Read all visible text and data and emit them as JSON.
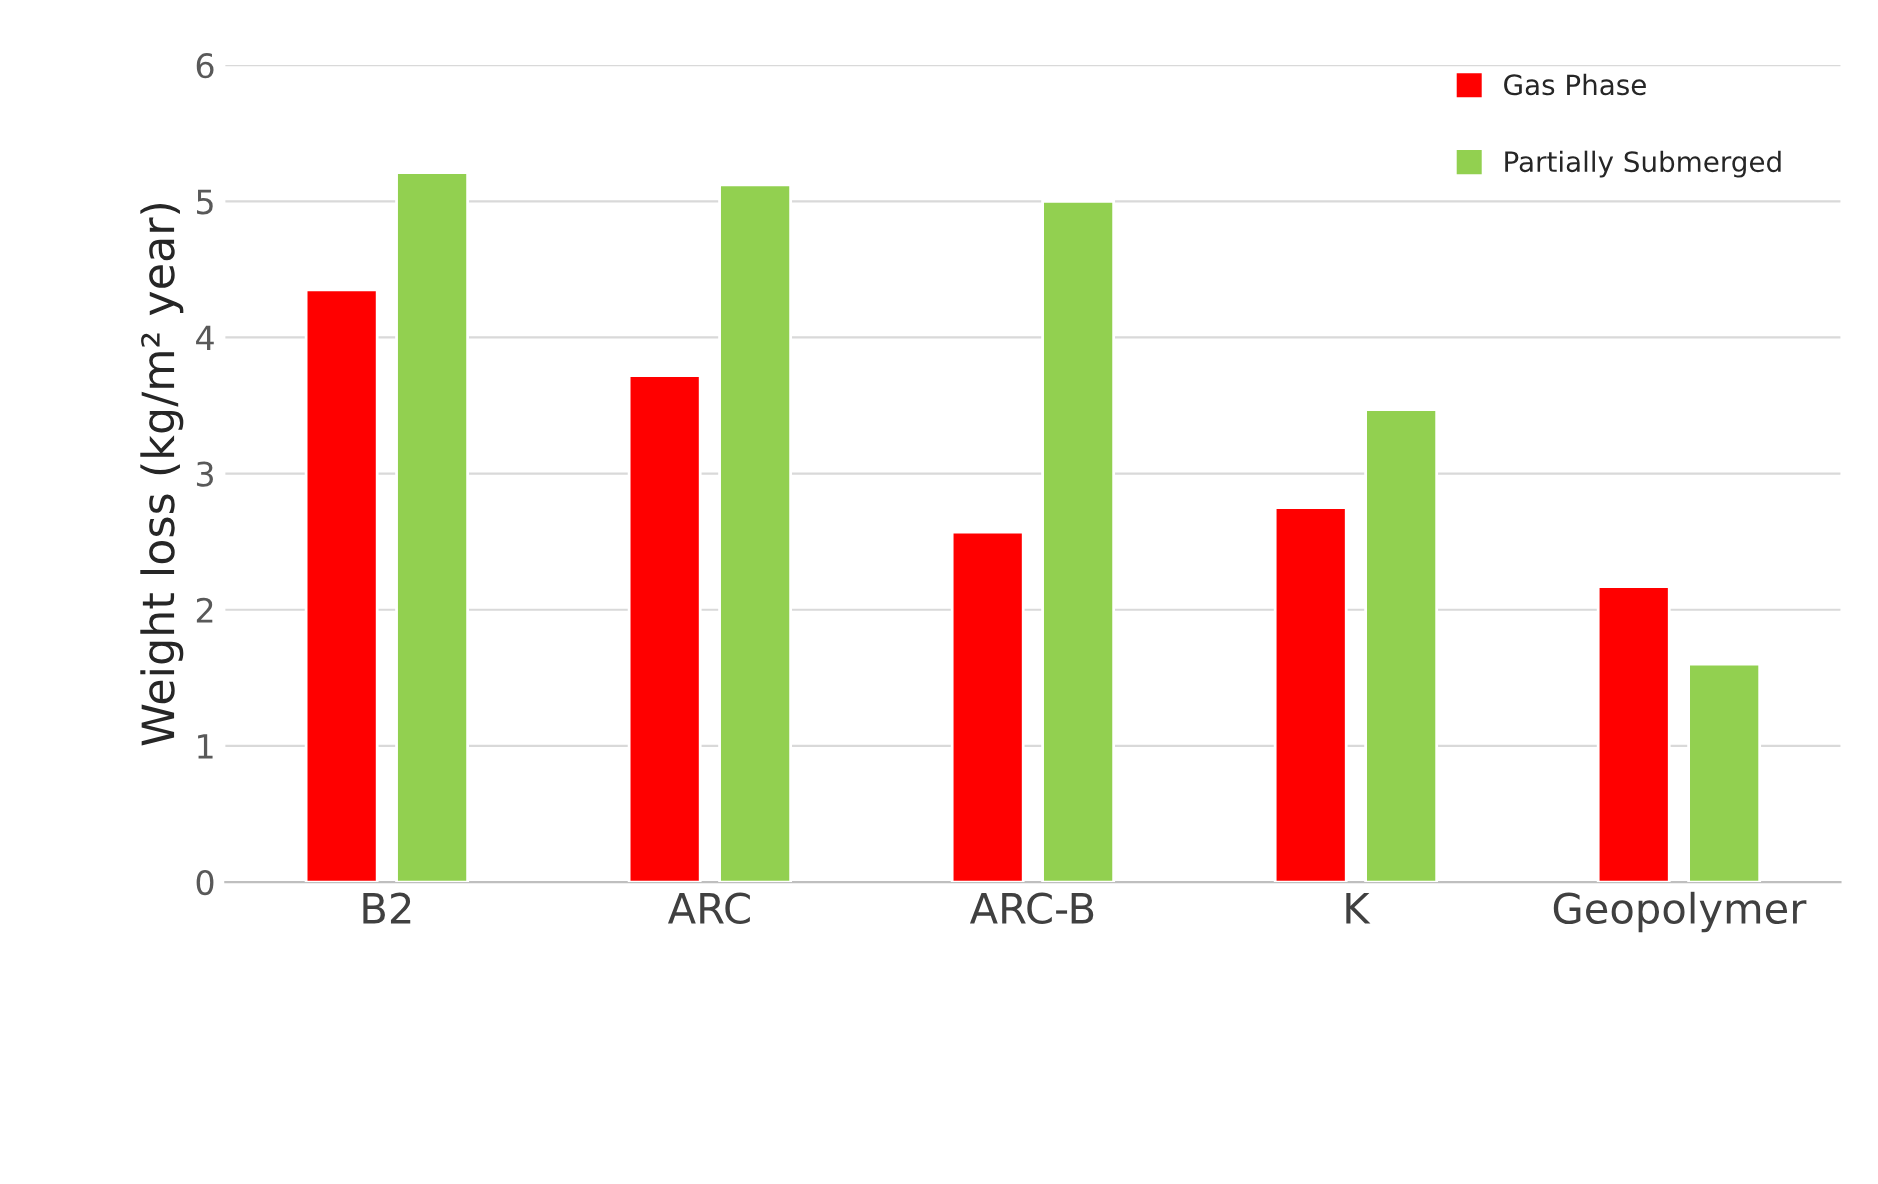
{
  "chart_data": {
    "type": "bar",
    "ylabel": "Weight loss (kg/m² year)",
    "categories": [
      "B2",
      "ARC",
      "ARC-B",
      "K",
      "Geopolymer"
    ],
    "series": [
      {
        "name": "Gas Phase",
        "color": "#ff0000",
        "values": [
          4.35,
          3.72,
          2.57,
          2.75,
          2.17
        ]
      },
      {
        "name": "Partially Submerged",
        "color": "#92d050",
        "values": [
          5.21,
          5.12,
          5.0,
          3.47,
          1.6
        ]
      }
    ],
    "ylim": [
      0,
      6
    ],
    "yticks": [
      0,
      1,
      2,
      3,
      4,
      5,
      6
    ],
    "grid": "y",
    "legend": "top right"
  }
}
